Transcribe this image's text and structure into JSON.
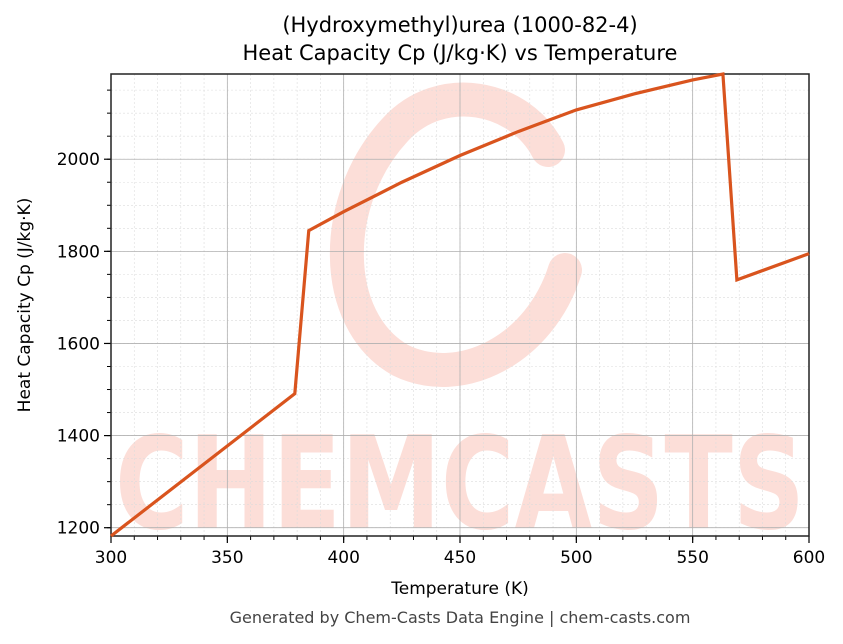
{
  "title_line1": "(Hydroxymethyl)urea (1000-82-4)",
  "title_line2": "Heat Capacity Cp (J/kg·K) vs Temperature",
  "footer": "Generated by Chem-Casts Data Engine | chem-casts.com",
  "watermark": "CHEMCASTS",
  "colors": {
    "line": "#d9541e",
    "watermark": "#fcded8",
    "grid": "#b0b0b0"
  },
  "chart_data": {
    "type": "line",
    "title": "(Hydroxymethyl)urea (1000-82-4)\nHeat Capacity Cp (J/kg·K) vs Temperature",
    "xlabel": "Temperature (K)",
    "ylabel": "Heat Capacity Cp (J/kg·K)",
    "xlim": [
      300,
      600
    ],
    "ylim": [
      1182,
      2185
    ],
    "xticks": [
      300,
      350,
      400,
      450,
      500,
      550,
      600
    ],
    "yticks": [
      1200,
      1400,
      1600,
      1800,
      2000
    ],
    "grid": true,
    "minor_grid": true,
    "legend": "none",
    "series": [
      {
        "x": [
          300,
          379,
          385,
          400,
          425,
          450,
          475,
          500,
          525,
          550,
          563,
          569,
          600
        ],
        "y": [
          1182,
          1491,
          1845,
          1886,
          1950,
          2008,
          2060,
          2107,
          2142,
          2172,
          2185,
          1738,
          1795
        ]
      }
    ]
  }
}
